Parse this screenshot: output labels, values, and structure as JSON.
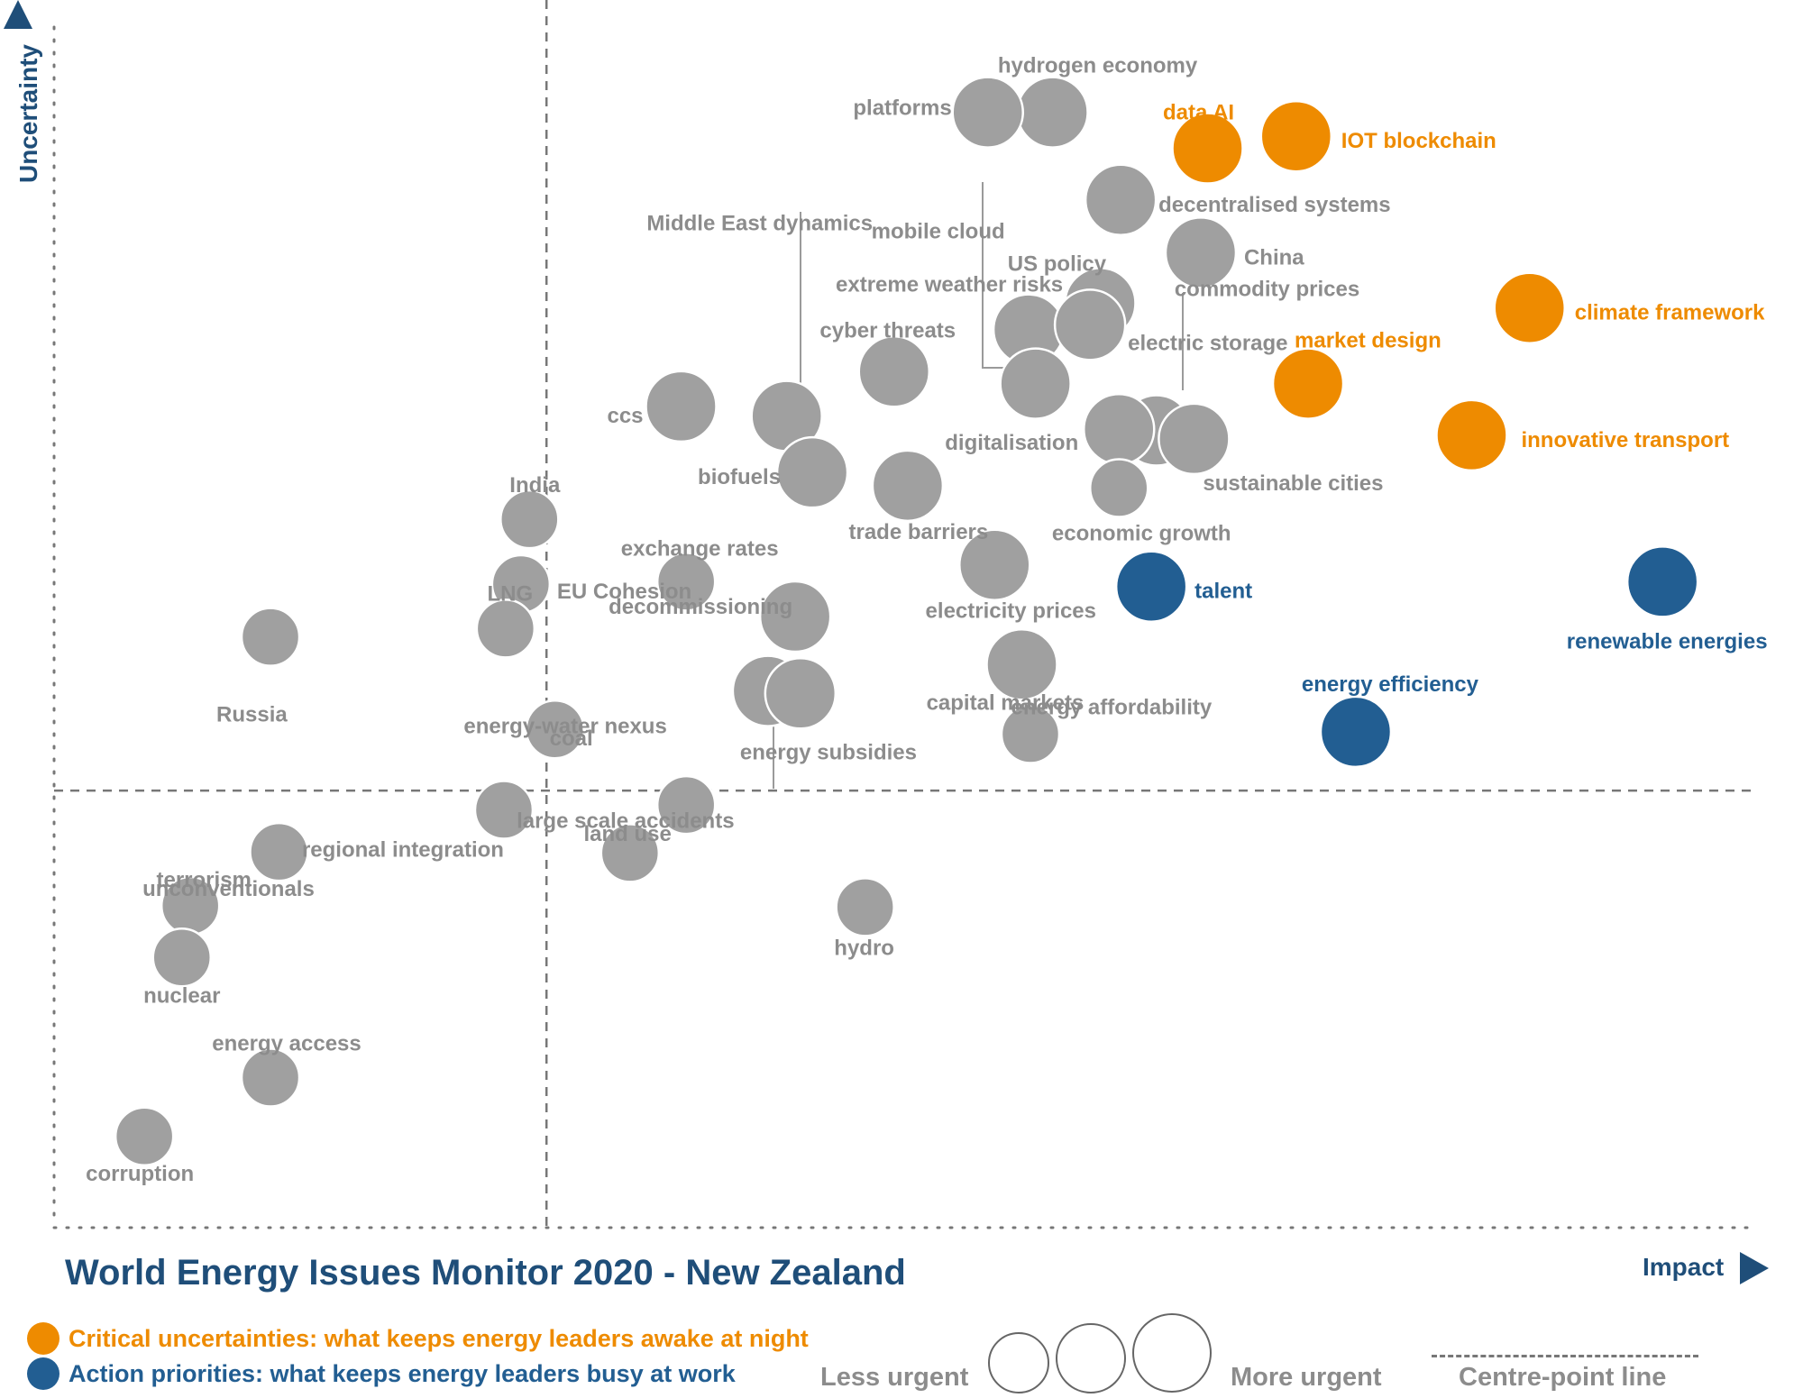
{
  "title": "World Energy Issues Monitor 2020 - New Zealand",
  "colors": {
    "grey": "#a0a0a0",
    "orange": "#ee8b00",
    "blue": "#225e92",
    "navy": "#1f4e79",
    "label_grey": "#8c8c8c"
  },
  "legend": {
    "critical": "Critical uncertainties: what keeps energy leaders awake at night",
    "action": "Action priorities: what keeps energy leaders busy at work",
    "less_urgent": "Less urgent",
    "more_urgent": "More urgent",
    "centre_point": "Centre-point  line"
  },
  "chart_data": {
    "type": "scatter",
    "title": "World Energy Issues Monitor 2020 - New Zealand",
    "xlabel": "Impact",
    "ylabel": "Uncertainty",
    "xlim": [
      0,
      100
    ],
    "ylim": [
      0,
      100
    ],
    "centre_point": {
      "x": 28.9,
      "y": 36.4
    },
    "grid": false,
    "points": [
      {
        "label": "hydrogen economy",
        "x": 58.6,
        "y": 92.9,
        "size": 3,
        "group": "grey"
      },
      {
        "label": "platforms",
        "x": 54.8,
        "y": 92.9,
        "size": 3,
        "group": "grey"
      },
      {
        "label": "data AI",
        "x": 67.7,
        "y": 89.9,
        "size": 3,
        "group": "critical"
      },
      {
        "label": "IOT blockchain",
        "x": 72.9,
        "y": 90.9,
        "size": 3,
        "group": "critical"
      },
      {
        "label": "decentralised systems",
        "x": 62.6,
        "y": 85.6,
        "size": 3,
        "group": "grey"
      },
      {
        "label": "China",
        "x": 67.3,
        "y": 81.2,
        "size": 3,
        "group": "grey"
      },
      {
        "label": "US policy",
        "x": 61.4,
        "y": 77.0,
        "size": 3,
        "group": "grey"
      },
      {
        "label": "extreme weather risks",
        "x": 57.2,
        "y": 74.8,
        "size": 3,
        "group": "grey"
      },
      {
        "label": "electric storage",
        "x": 60.8,
        "y": 75.2,
        "size": 3,
        "group": "grey"
      },
      {
        "label": "commodity prices",
        "x": 64.7,
        "y": 66.4,
        "size": 3,
        "group": "grey"
      },
      {
        "label": "mobile cloud",
        "x": 57.6,
        "y": 70.3,
        "size": 3,
        "group": "grey"
      },
      {
        "label": "cyber threats",
        "x": 49.3,
        "y": 71.3,
        "size": 3,
        "group": "grey"
      },
      {
        "label": "Middle East dynamics",
        "x": 43.0,
        "y": 67.6,
        "size": 3,
        "group": "grey"
      },
      {
        "label": "climate framework",
        "x": 86.6,
        "y": 76.6,
        "size": 3,
        "group": "critical"
      },
      {
        "label": "market design",
        "x": 73.6,
        "y": 70.3,
        "size": 3,
        "group": "critical"
      },
      {
        "label": "innovative transport",
        "x": 83.2,
        "y": 66.0,
        "size": 3,
        "group": "critical"
      },
      {
        "label": "ccs",
        "x": 36.8,
        "y": 68.4,
        "size": 3,
        "group": "grey"
      },
      {
        "label": "digitalisation",
        "x": 62.5,
        "y": 66.5,
        "size": 3,
        "group": "grey"
      },
      {
        "label": "sustainable cities",
        "x": 66.9,
        "y": 65.7,
        "size": 3,
        "group": "grey"
      },
      {
        "label": "economic growth",
        "x": 62.5,
        "y": 61.6,
        "size": 2,
        "group": "grey"
      },
      {
        "label": "biofuels",
        "x": 44.5,
        "y": 62.9,
        "size": 3,
        "group": "grey"
      },
      {
        "label": "trade barriers",
        "x": 50.1,
        "y": 61.8,
        "size": 3,
        "group": "grey"
      },
      {
        "label": "India",
        "x": 27.9,
        "y": 59.0,
        "size": 2,
        "group": "grey"
      },
      {
        "label": "electricity prices",
        "x": 55.2,
        "y": 55.2,
        "size": 3,
        "group": "grey"
      },
      {
        "label": "talent",
        "x": 64.4,
        "y": 53.4,
        "size": 3,
        "group": "action"
      },
      {
        "label": "renewable energies",
        "x": 94.4,
        "y": 53.8,
        "size": 3,
        "group": "action"
      },
      {
        "label": "exchange rates",
        "x": 37.1,
        "y": 53.8,
        "size": 2,
        "group": "grey"
      },
      {
        "label": "decommissioning",
        "x": 43.5,
        "y": 50.9,
        "size": 3,
        "group": "grey"
      },
      {
        "label": "EU Cohesion",
        "x": 27.4,
        "y": 53.6,
        "size": 2,
        "group": "grey"
      },
      {
        "label": "LNG",
        "x": 26.5,
        "y": 49.9,
        "size": 2,
        "group": "grey"
      },
      {
        "label": "Russia",
        "x": 12.7,
        "y": 49.2,
        "size": 2,
        "group": "grey"
      },
      {
        "label": "energy affordability",
        "x": 56.8,
        "y": 46.9,
        "size": 3,
        "group": "grey"
      },
      {
        "label": "energy efficiency",
        "x": 76.4,
        "y": 41.3,
        "size": 3,
        "group": "action"
      },
      {
        "label": "energy subsidies",
        "x": 41.9,
        "y": 44.7,
        "size": 3,
        "group": "grey"
      },
      {
        "label": "energy-water nexus",
        "x": 43.8,
        "y": 44.5,
        "size": 3,
        "group": "grey"
      },
      {
        "label": "capital markets",
        "x": 57.3,
        "y": 41.1,
        "size": 2,
        "group": "grey"
      },
      {
        "label": "coal",
        "x": 29.4,
        "y": 41.5,
        "size": 2,
        "group": "grey"
      },
      {
        "label": "land use",
        "x": 37.1,
        "y": 35.2,
        "size": 2,
        "group": "grey"
      },
      {
        "label": "regional integration",
        "x": 26.4,
        "y": 34.8,
        "size": 2,
        "group": "grey"
      },
      {
        "label": "unconventionals",
        "x": 13.2,
        "y": 31.3,
        "size": 2,
        "group": "grey"
      },
      {
        "label": "large scale accidents",
        "x": 33.8,
        "y": 31.2,
        "size": 2,
        "group": "grey"
      },
      {
        "label": "terrorism",
        "x": 8.0,
        "y": 26.8,
        "size": 2,
        "group": "grey"
      },
      {
        "label": "hydro",
        "x": 47.6,
        "y": 26.7,
        "size": 2,
        "group": "grey"
      },
      {
        "label": "nuclear",
        "x": 7.5,
        "y": 22.5,
        "size": 2,
        "group": "grey"
      },
      {
        "label": "energy access",
        "x": 12.7,
        "y": 12.5,
        "size": 2,
        "group": "grey"
      },
      {
        "label": "corruption",
        "x": 5.3,
        "y": 7.6,
        "size": 2,
        "group": "grey"
      }
    ]
  }
}
